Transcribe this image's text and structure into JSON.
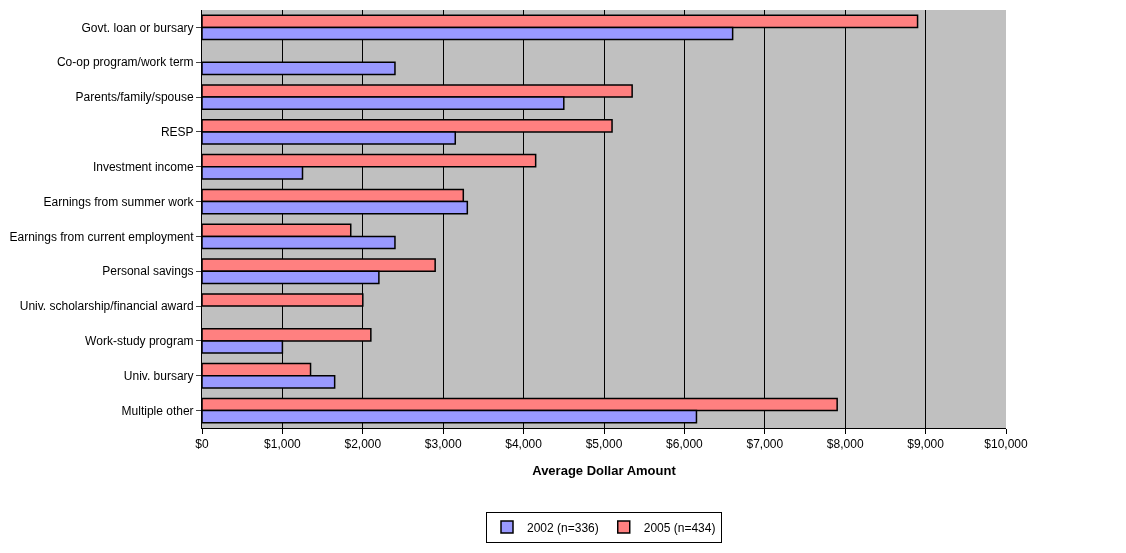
{
  "chart_data": {
    "type": "bar",
    "orientation": "horizontal",
    "xlabel": "Average Dollar Amount",
    "categories": [
      "Govt. loan or bursary",
      "Co-op program/work term",
      "Parents/family/spouse",
      "RESP",
      "Investment income",
      "Earnings from summer work",
      "Earnings from current employment",
      "Personal savings",
      "Univ. scholarship/financial award",
      "Work-study program",
      "Univ. bursary",
      "Multiple other"
    ],
    "series": [
      {
        "name": "2002 (n=336)",
        "color": "#9999ff",
        "values": [
          6600,
          2400,
          4500,
          3150,
          1250,
          3300,
          2400,
          2200,
          null,
          1000,
          1650,
          6150
        ]
      },
      {
        "name": "2005 (n=434)",
        "color": "#ff8080",
        "values": [
          8900,
          null,
          5350,
          5100,
          4150,
          3250,
          1850,
          2900,
          2000,
          2100,
          1350,
          7900
        ]
      }
    ],
    "xlim": [
      0,
      10000
    ],
    "xticks": [
      {
        "value": 0,
        "label": "$0"
      },
      {
        "value": 1000,
        "label": "$1,000"
      },
      {
        "value": 2000,
        "label": "$2,000"
      },
      {
        "value": 3000,
        "label": "$3,000"
      },
      {
        "value": 4000,
        "label": "$4,000"
      },
      {
        "value": 5000,
        "label": "$5,000"
      },
      {
        "value": 6000,
        "label": "$6,000"
      },
      {
        "value": 7000,
        "label": "$7,000"
      },
      {
        "value": 8000,
        "label": "$8,000"
      },
      {
        "value": 9000,
        "label": "$9,000"
      },
      {
        "value": 10000,
        "label": "$10,000"
      }
    ],
    "grid": "x",
    "legend": "bottom"
  }
}
